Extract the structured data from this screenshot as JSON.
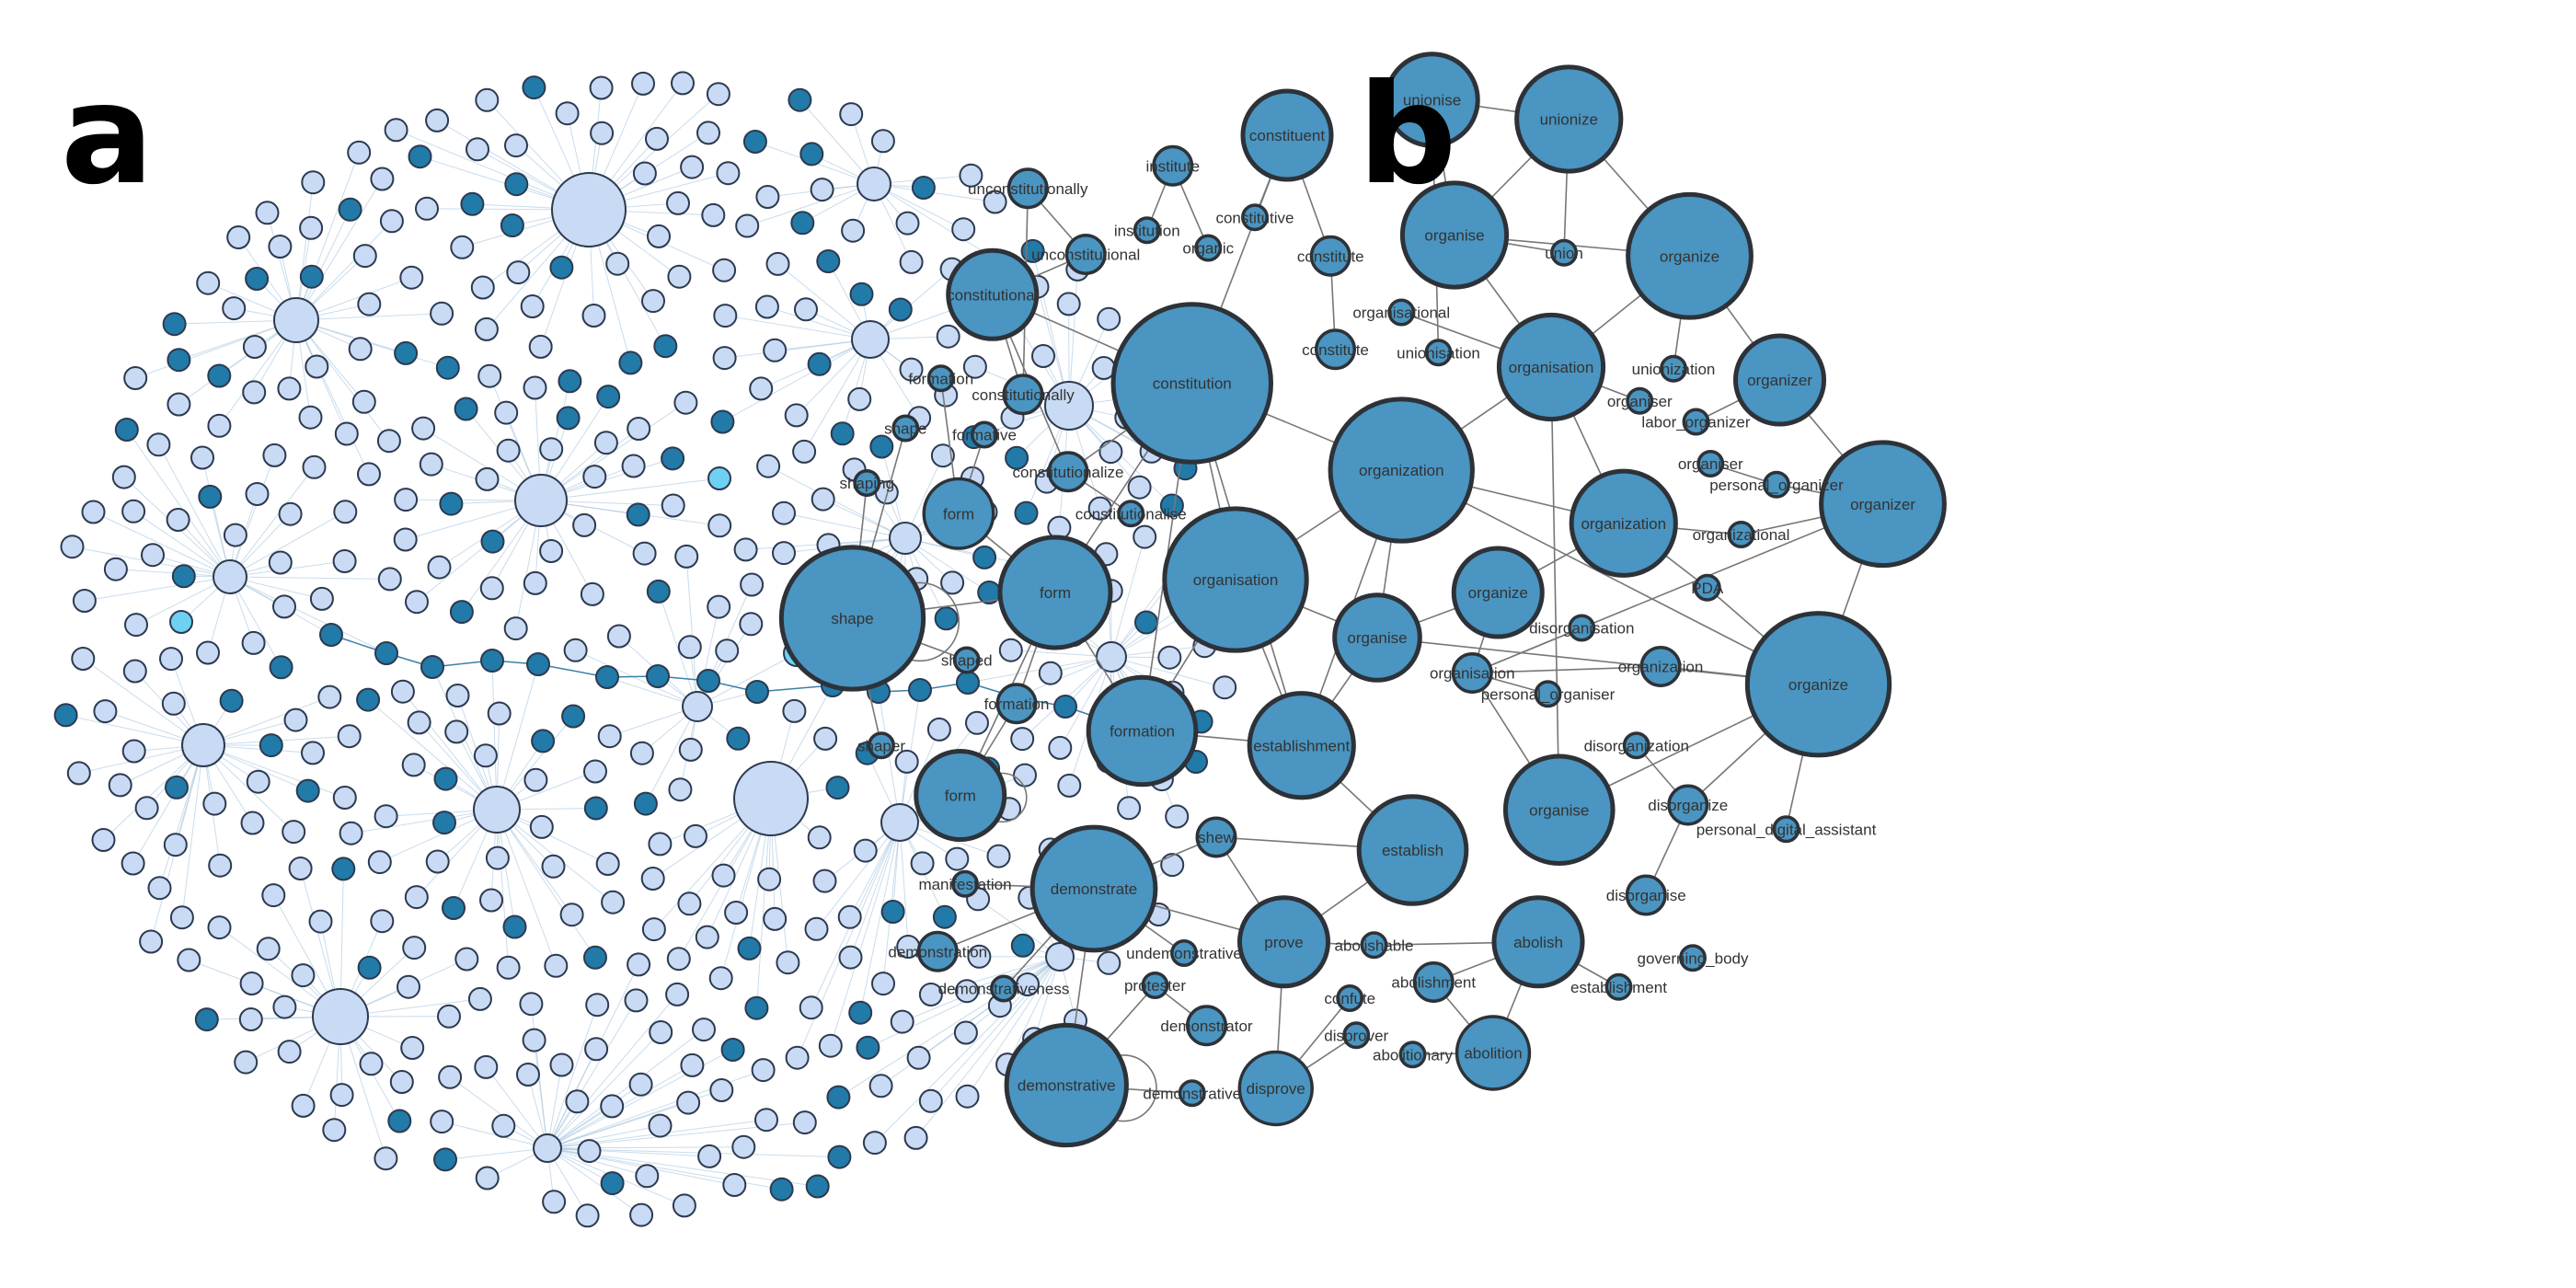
{
  "panels": {
    "a": {
      "label": "a"
    },
    "b": {
      "label": "b"
    }
  },
  "colors": {
    "a_light_fill": "#c9daf4",
    "a_dark_fill": "#217aa8",
    "a_cyan_fill": "#6fd1f2",
    "a_stroke": "#2c3a50",
    "a_edge": "#9dbfdc",
    "b_fill": "#4a95c1",
    "b_stroke": "#2d3238",
    "b_edge": "#777777"
  },
  "network_b": {
    "nodes": [
      {
        "id": "unionise",
        "label": "unionise",
        "size": "m"
      },
      {
        "id": "unionize_top",
        "label": "unionize",
        "size": "l"
      },
      {
        "id": "constituent",
        "label": "constituent",
        "size": "m"
      },
      {
        "id": "institute",
        "label": "institute",
        "size": "s"
      },
      {
        "id": "unconstitutionally",
        "label": "unconstitutionally",
        "size": "s"
      },
      {
        "id": "institution",
        "label": "institution",
        "size": "xs"
      },
      {
        "id": "constitutive",
        "label": "constitutive",
        "size": "xs"
      },
      {
        "id": "organic",
        "label": "organic",
        "size": "xs"
      },
      {
        "id": "unconstitutional",
        "label": "unconstitutional",
        "size": "s"
      },
      {
        "id": "constitute1",
        "label": "constitute",
        "size": "s"
      },
      {
        "id": "organise_top",
        "label": "organise",
        "size": "m"
      },
      {
        "id": "union",
        "label": "union",
        "size": "xs"
      },
      {
        "id": "organize_top",
        "label": "organize",
        "size": "l"
      },
      {
        "id": "constitutional",
        "label": "constitutional",
        "size": "m"
      },
      {
        "id": "organisational",
        "label": "organisational",
        "size": "xs"
      },
      {
        "id": "unionisation",
        "label": "unionisation",
        "size": "xs"
      },
      {
        "id": "constitute2",
        "label": "constitute",
        "size": "s"
      },
      {
        "id": "organisation_top",
        "label": "organisation",
        "size": "m"
      },
      {
        "id": "unionization",
        "label": "unionization",
        "size": "xs"
      },
      {
        "id": "organizer_top",
        "label": "organizer",
        "size": "m"
      },
      {
        "id": "formation_small",
        "label": "formation",
        "size": "xs"
      },
      {
        "id": "constitutionally",
        "label": "constitutionally",
        "size": "s"
      },
      {
        "id": "constitution",
        "label": "constitution",
        "size": "xl"
      },
      {
        "id": "organiser",
        "label": "organiser",
        "size": "xs"
      },
      {
        "id": "labor_organizer",
        "label": "labor_organizer",
        "size": "xs"
      },
      {
        "id": "shape_small",
        "label": "shape",
        "size": "xs"
      },
      {
        "id": "formative",
        "label": "formative",
        "size": "xs"
      },
      {
        "id": "organization_top",
        "label": "organization",
        "size": "xl"
      },
      {
        "id": "constitutionalize",
        "label": "constitutionalize",
        "size": "s"
      },
      {
        "id": "organiser2",
        "label": "organiser",
        "size": "xs"
      },
      {
        "id": "personal_organizer",
        "label": "personal_organizer",
        "size": "xs"
      },
      {
        "id": "shaping",
        "label": "shaping",
        "size": "xs"
      },
      {
        "id": "constitutionalise",
        "label": "constitutionalise",
        "size": "xs"
      },
      {
        "id": "form1",
        "label": "form",
        "size": "s"
      },
      {
        "id": "organizer_right",
        "label": "organizer",
        "size": "l"
      },
      {
        "id": "organization_mid",
        "label": "organization",
        "size": "m"
      },
      {
        "id": "organizational",
        "label": "organizational",
        "size": "xs"
      },
      {
        "id": "shape_big",
        "label": "shape",
        "size": "xl"
      },
      {
        "id": "form2",
        "label": "form",
        "size": "m"
      },
      {
        "id": "organisation_big",
        "label": "organisation",
        "size": "xl"
      },
      {
        "id": "organize_mid",
        "label": "organize",
        "size": "m"
      },
      {
        "id": "pda",
        "label": "PDA",
        "size": "xs"
      },
      {
        "id": "disorganisation",
        "label": "disorganisation",
        "size": "xs"
      },
      {
        "id": "organise_mid",
        "label": "organise",
        "size": "m"
      },
      {
        "id": "shaped",
        "label": "shaped",
        "size": "xs"
      },
      {
        "id": "organisation_small",
        "label": "organisation",
        "size": "s"
      },
      {
        "id": "personal_organiser",
        "label": "personal_organiser",
        "size": "xs"
      },
      {
        "id": "organization_small",
        "label": "organization",
        "size": "s"
      },
      {
        "id": "organize_big",
        "label": "organize",
        "size": "l"
      },
      {
        "id": "formation_mid",
        "label": "formation",
        "size": "s"
      },
      {
        "id": "formation_big",
        "label": "formation",
        "size": "m"
      },
      {
        "id": "establishment_big",
        "label": "establishment",
        "size": "m"
      },
      {
        "id": "shaper",
        "label": "shaper",
        "size": "xs"
      },
      {
        "id": "disorganization",
        "label": "disorganization",
        "size": "xs"
      },
      {
        "id": "form3",
        "label": "form",
        "size": "m"
      },
      {
        "id": "organise_low",
        "label": "organise",
        "size": "m"
      },
      {
        "id": "disorganize",
        "label": "disorganize",
        "size": "s"
      },
      {
        "id": "personal_digital_assistant",
        "label": "personal_digital_assistant",
        "size": "xs"
      },
      {
        "id": "shew",
        "label": "shew",
        "size": "s"
      },
      {
        "id": "establish",
        "label": "establish",
        "size": "m"
      },
      {
        "id": "manifestation",
        "label": "manifestation",
        "size": "xs"
      },
      {
        "id": "demonstrate",
        "label": "demonstrate",
        "size": "l"
      },
      {
        "id": "disorganise",
        "label": "disorganise",
        "size": "s"
      },
      {
        "id": "demonstration",
        "label": "demonstration",
        "size": "s"
      },
      {
        "id": "undemonstrative",
        "label": "undemonstrative",
        "size": "xs"
      },
      {
        "id": "prove",
        "label": "prove",
        "size": "m"
      },
      {
        "id": "abolishable",
        "label": "abolishable",
        "size": "xs"
      },
      {
        "id": "abolish",
        "label": "abolish",
        "size": "m"
      },
      {
        "id": "governing_body",
        "label": "governing_body",
        "size": "xs"
      },
      {
        "id": "demonstrativeness",
        "label": "demonstrativeness",
        "size": "xs"
      },
      {
        "id": "protester",
        "label": "protester",
        "size": "xs"
      },
      {
        "id": "abolishment",
        "label": "abolishment",
        "size": "s"
      },
      {
        "id": "establishment_small",
        "label": "establishment",
        "size": "xs"
      },
      {
        "id": "confute",
        "label": "confute",
        "size": "xs"
      },
      {
        "id": "demonstrator",
        "label": "demonstrator",
        "size": "s"
      },
      {
        "id": "disprover",
        "label": "disprover",
        "size": "xs"
      },
      {
        "id": "abolitionary",
        "label": "abolitionary",
        "size": "xs"
      },
      {
        "id": "abolition",
        "label": "abolition",
        "size": "m"
      },
      {
        "id": "demonstrative_big",
        "label": "demonstrative",
        "size": "l"
      },
      {
        "id": "demonstrative_small",
        "label": "demonstrative",
        "size": "xs"
      },
      {
        "id": "disprove",
        "label": "disprove",
        "size": "m"
      }
    ],
    "edges": [
      [
        "unionise",
        "unionize_top"
      ],
      [
        "unionise",
        "organise_top"
      ],
      [
        "unionize_top",
        "organize_top"
      ],
      [
        "unionize_top",
        "organise_top"
      ],
      [
        "unionize_top",
        "union"
      ],
      [
        "unionise",
        "unionisation"
      ],
      [
        "organise_top",
        "organize_top"
      ],
      [
        "organise_top",
        "union"
      ],
      [
        "organise_top",
        "organisation_top"
      ],
      [
        "organize_top",
        "organisation_top"
      ],
      [
        "organize_top",
        "organizer_top"
      ],
      [
        "organize_top",
        "unionization"
      ],
      [
        "organisation_top",
        "organization_top"
      ],
      [
        "organisation_top",
        "organiser"
      ],
      [
        "organisation_top",
        "organisational"
      ],
      [
        "organisation_top",
        "organise_low"
      ],
      [
        "organizer_top",
        "organizer_right"
      ],
      [
        "organizer_top",
        "labor_organizer"
      ],
      [
        "organizer_right",
        "personal_organizer"
      ],
      [
        "organizer_right",
        "organizational"
      ],
      [
        "organizer_right",
        "organisation_small"
      ],
      [
        "organizer_right",
        "organize_big"
      ],
      [
        "organiser2",
        "personal_organizer"
      ],
      [
        "constituent",
        "constitutive"
      ],
      [
        "constituent",
        "constitute1"
      ],
      [
        "constituent",
        "constitution"
      ],
      [
        "institute",
        "institution"
      ],
      [
        "institute",
        "organic"
      ],
      [
        "constitute1",
        "constitute2"
      ],
      [
        "constitutional",
        "constitution"
      ],
      [
        "constitutional",
        "unconstitutional"
      ],
      [
        "constitutional",
        "constitutionally"
      ],
      [
        "unconstitutionally",
        "unconstitutional"
      ],
      [
        "unconstitutionally",
        "constitutionally"
      ],
      [
        "constitution",
        "constitutionalize"
      ],
      [
        "constitution",
        "organisation_big"
      ],
      [
        "constitution",
        "organization_top"
      ],
      [
        "constitution",
        "formation_big"
      ],
      [
        "constitution",
        "establishment_big"
      ],
      [
        "constitution",
        "form2"
      ],
      [
        "constitutionalize",
        "constitutionalise"
      ],
      [
        "constitutional",
        "constitutionalize"
      ],
      [
        "organization_top",
        "organisation_big"
      ],
      [
        "organization_top",
        "organise_mid"
      ],
      [
        "organization_top",
        "organization_mid"
      ],
      [
        "organization_top",
        "organize_big"
      ],
      [
        "organization_top",
        "establishment_big"
      ],
      [
        "organisation_big",
        "formation_big"
      ],
      [
        "organisation_big",
        "establishment_big"
      ],
      [
        "organisation_big",
        "organise_mid"
      ],
      [
        "organization_mid",
        "organize_mid"
      ],
      [
        "organization_mid",
        "organizational"
      ],
      [
        "organization_mid",
        "pda"
      ],
      [
        "organization_mid",
        "organisation_top"
      ],
      [
        "organize_mid",
        "organise_mid"
      ],
      [
        "organize_mid",
        "organisation_small"
      ],
      [
        "organise_mid",
        "establishment_big"
      ],
      [
        "organise_mid",
        "organize_big"
      ],
      [
        "organisation_small",
        "organization_small"
      ],
      [
        "organisation_small",
        "personal_organiser"
      ],
      [
        "organization_small",
        "organize_big"
      ],
      [
        "disorganisation",
        "organisation_small"
      ],
      [
        "disorganization",
        "disorganize"
      ],
      [
        "disorganize",
        "organize_big"
      ],
      [
        "disorganize",
        "disorganise"
      ],
      [
        "organize_big",
        "personal_digital_assistant"
      ],
      [
        "organize_big",
        "organise_low"
      ],
      [
        "pda",
        "organize_big"
      ],
      [
        "organise_low",
        "organisation_small"
      ],
      [
        "shape_big",
        "form2"
      ],
      [
        "shape_big",
        "shaping"
      ],
      [
        "shape_big",
        "shaped"
      ],
      [
        "shape_big",
        "shaper"
      ],
      [
        "shape_big",
        "shape_small"
      ],
      [
        "form1",
        "form2"
      ],
      [
        "form1",
        "formative"
      ],
      [
        "form1",
        "formation_small"
      ],
      [
        "form2",
        "formation_mid"
      ],
      [
        "form2",
        "formation_big"
      ],
      [
        "form3",
        "formation_mid"
      ],
      [
        "form3",
        "form2"
      ],
      [
        "formation_big",
        "establishment_big"
      ],
      [
        "establishment_big",
        "establish"
      ],
      [
        "establish",
        "shew"
      ],
      [
        "establish",
        "prove"
      ],
      [
        "shew",
        "demonstrate"
      ],
      [
        "shew",
        "prove"
      ],
      [
        "demonstrate",
        "manifestation"
      ],
      [
        "demonstrate",
        "demonstration"
      ],
      [
        "demonstrate",
        "prove"
      ],
      [
        "demonstrate",
        "demonstrativeness"
      ],
      [
        "demonstrate",
        "demonstrative_big"
      ],
      [
        "demonstrate",
        "undemonstrative"
      ],
      [
        "demonstrative_big",
        "demonstrative_small"
      ],
      [
        "demonstrative_big",
        "protester"
      ],
      [
        "protester",
        "demonstrator"
      ],
      [
        "prove",
        "disprove"
      ],
      [
        "prove",
        "abolishable"
      ],
      [
        "disprove",
        "confute"
      ],
      [
        "disprove",
        "disprover"
      ],
      [
        "abolish",
        "abolishable"
      ],
      [
        "abolish",
        "abolishment"
      ],
      [
        "abolish",
        "abolition"
      ],
      [
        "abolish",
        "establishment_small"
      ],
      [
        "abolition",
        "abolitionary"
      ],
      [
        "abolishment",
        "abolition"
      ]
    ]
  },
  "network_a": {
    "hub_count": 17,
    "spoke_count": 40,
    "scatter_count": 470
  }
}
